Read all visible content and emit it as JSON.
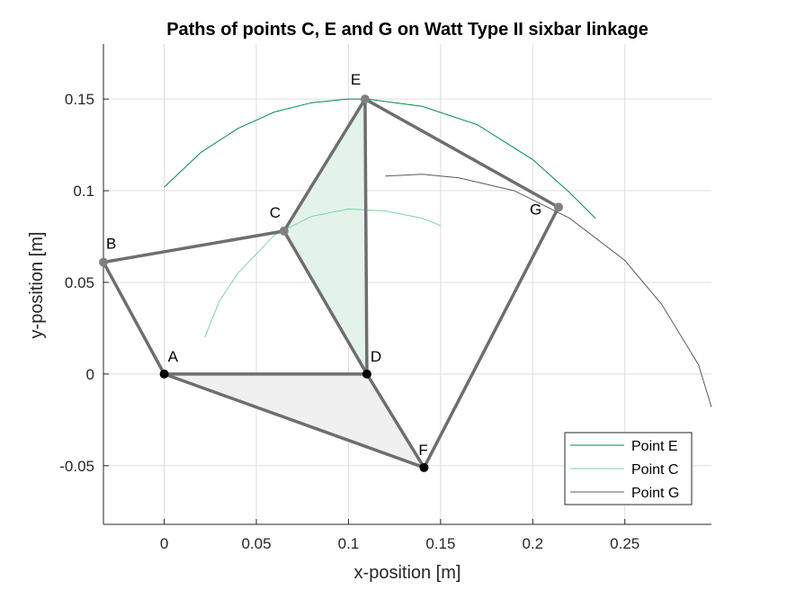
{
  "chart_data": {
    "type": "line",
    "title": "Paths of points C, E and G on Watt Type II sixbar linkage",
    "xlabel": "x-position [m]",
    "ylabel": "y-position [m]",
    "xlim": [
      -0.033,
      0.297
    ],
    "ylim": [
      -0.082,
      0.18
    ],
    "xticks": [
      0,
      0.05,
      0.1,
      0.15,
      0.2,
      0.25
    ],
    "xtick_labels": [
      "0",
      "0.05",
      "0.1",
      "0.15",
      "0.2",
      "0.25"
    ],
    "yticks": [
      -0.05,
      0,
      0.05,
      0.1,
      0.15
    ],
    "ytick_labels": [
      "-0.05",
      "0",
      "0.05",
      "0.1",
      "0.15"
    ],
    "grid": true,
    "legend_location": "bottom-right",
    "points": [
      {
        "name": "A",
        "x": 0.0,
        "y": 0.0,
        "color": "#000000"
      },
      {
        "name": "B",
        "x": -0.033,
        "y": 0.061,
        "color": "#808080"
      },
      {
        "name": "C",
        "x": 0.065,
        "y": 0.078,
        "color": "#808080"
      },
      {
        "name": "D",
        "x": 0.11,
        "y": 0.0,
        "color": "#000000"
      },
      {
        "name": "E",
        "x": 0.109,
        "y": 0.15,
        "color": "#808080"
      },
      {
        "name": "F",
        "x": 0.141,
        "y": -0.051,
        "color": "#000000"
      },
      {
        "name": "G",
        "x": 0.214,
        "y": 0.091,
        "color": "#808080"
      }
    ],
    "links": [
      {
        "from": "A",
        "to": "B"
      },
      {
        "from": "B",
        "to": "C"
      },
      {
        "from": "C",
        "to": "E"
      },
      {
        "from": "C",
        "to": "D"
      },
      {
        "from": "D",
        "to": "E"
      },
      {
        "from": "A",
        "to": "D"
      },
      {
        "from": "A",
        "to": "F"
      },
      {
        "from": "D",
        "to": "F"
      },
      {
        "from": "E",
        "to": "G"
      },
      {
        "from": "F",
        "to": "G"
      }
    ],
    "filled_bodies": [
      {
        "vertices": [
          "C",
          "D",
          "E"
        ],
        "color": "#e3f3ea"
      },
      {
        "vertices": [
          "A",
          "D",
          "F"
        ],
        "color": "#f0f0f0"
      }
    ],
    "series": [
      {
        "name": "Point E",
        "color": "#008a4a",
        "x": [
          0.0,
          0.02,
          0.04,
          0.06,
          0.08,
          0.1,
          0.11,
          0.14,
          0.17,
          0.2,
          0.22,
          0.234
        ],
        "y": [
          0.102,
          0.121,
          0.134,
          0.143,
          0.148,
          0.15,
          0.15,
          0.146,
          0.136,
          0.117,
          0.099,
          0.085
        ]
      },
      {
        "name": "Point C",
        "color": "#7fd1a7",
        "x": [
          0.022,
          0.03,
          0.04,
          0.06,
          0.08,
          0.1,
          0.12,
          0.14,
          0.15
        ],
        "y": [
          0.02,
          0.04,
          0.055,
          0.076,
          0.086,
          0.09,
          0.089,
          0.085,
          0.081
        ]
      },
      {
        "name": "Point G",
        "color": "#595959",
        "x": [
          0.12,
          0.14,
          0.16,
          0.19,
          0.22,
          0.25,
          0.27,
          0.29,
          0.297
        ],
        "y": [
          0.108,
          0.109,
          0.107,
          0.1,
          0.085,
          0.062,
          0.038,
          0.005,
          -0.018
        ]
      }
    ]
  }
}
